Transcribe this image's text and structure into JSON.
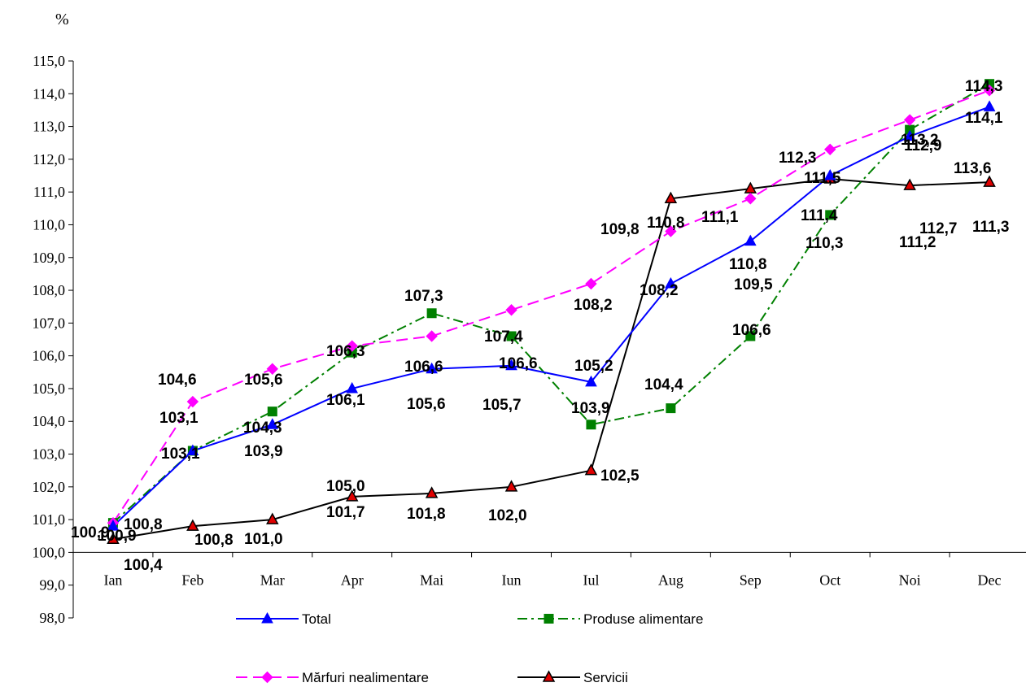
{
  "chart_data": {
    "type": "line",
    "unit_label": "%",
    "categories": [
      "Ian",
      "Feb",
      "Mar",
      "Apr",
      "Mai",
      "Iun",
      "Iul",
      "Aug",
      "Sep",
      "Oct",
      "Noi",
      "Dec"
    ],
    "yticks": [
      "98,0",
      "99,0",
      "100,0",
      "101,0",
      "102,0",
      "103,0",
      "104,0",
      "105,0",
      "106,0",
      "107,0",
      "108,0",
      "109,0",
      "110,0",
      "111,0",
      "112,0",
      "113,0",
      "114,0",
      "115,0"
    ],
    "ylim": [
      98,
      115
    ],
    "x_axis_crosses_at": 100,
    "grid": false,
    "legend_position": "bottom",
    "series": [
      {
        "key": "total",
        "name": "Total",
        "color": "#0000ff",
        "line_style": "solid",
        "marker": "triangle",
        "values": [
          100.8,
          103.1,
          103.9,
          105.0,
          105.6,
          105.7,
          105.2,
          108.2,
          109.5,
          111.5,
          112.7,
          113.6
        ],
        "labels": [
          "100,8",
          "103,1",
          "103,9",
          "105,0",
          "105,6",
          "105,7",
          "105,2",
          "108,2",
          "109,5",
          "111,5",
          "112,7",
          "113,6"
        ]
      },
      {
        "key": "food",
        "name": "Produse alimentare",
        "color": "#008000",
        "line_style": "dash-dot",
        "marker": "square",
        "values": [
          100.9,
          103.1,
          104.3,
          106.1,
          107.3,
          106.6,
          103.9,
          104.4,
          106.6,
          110.3,
          112.9,
          114.3
        ],
        "labels": [
          "100,9",
          "103,1",
          "104,3",
          "106,1",
          "107,3",
          "106,6",
          "103,9",
          "104,4",
          "106,6",
          "110,3",
          "112,9",
          "114,3"
        ]
      },
      {
        "key": "nonfood",
        "name": "Mărfuri nealimentare",
        "color": "#ff00ff",
        "line_style": "dashed",
        "marker": "diamond",
        "values": [
          100.9,
          104.6,
          105.6,
          106.3,
          106.6,
          107.4,
          108.2,
          109.8,
          110.8,
          112.3,
          113.2,
          114.1
        ],
        "labels": [
          "100,9",
          "104,6",
          "105,6",
          "106,3",
          "106,6",
          "107,4",
          "108,2",
          "109,8",
          "110,8",
          "112,3",
          "113,2",
          "114,1"
        ]
      },
      {
        "key": "services",
        "name": "Servicii",
        "color": "#000000",
        "line_style": "solid",
        "marker": "triangle-red",
        "values": [
          100.4,
          100.8,
          101.0,
          101.7,
          101.8,
          102.0,
          102.5,
          110.8,
          111.1,
          111.4,
          111.2,
          111.3
        ],
        "labels": [
          "100,4",
          "100,8",
          "101,0",
          "101,7",
          "101,8",
          "102,0",
          "102,5",
          "110,8",
          "111,1",
          "111,4",
          "111,2",
          "111,3"
        ]
      }
    ]
  }
}
